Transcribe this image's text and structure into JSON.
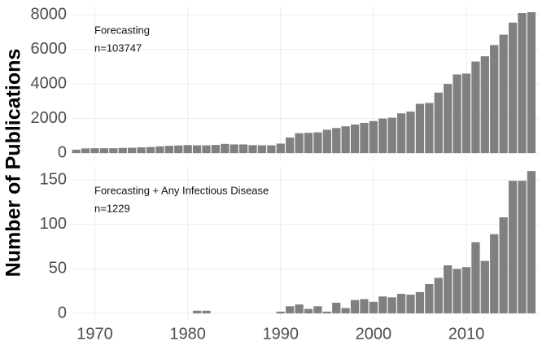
{
  "chart_data": [
    {
      "type": "bar",
      "ylabel": "Number of Publications",
      "color": "#808080",
      "grid": true,
      "annotations": [
        "Forecasting",
        "n=103747"
      ],
      "x": [
        1968,
        1969,
        1970,
        1971,
        1972,
        1973,
        1974,
        1975,
        1976,
        1977,
        1978,
        1979,
        1980,
        1981,
        1982,
        1983,
        1984,
        1985,
        1986,
        1987,
        1988,
        1989,
        1990,
        1991,
        1992,
        1993,
        1994,
        1995,
        1996,
        1997,
        1998,
        1999,
        2000,
        2001,
        2002,
        2003,
        2004,
        2005,
        2006,
        2007,
        2008,
        2009,
        2010,
        2011,
        2012,
        2013,
        2014,
        2015,
        2016,
        2017
      ],
      "values": [
        200,
        270,
        280,
        280,
        280,
        300,
        310,
        330,
        350,
        390,
        420,
        440,
        460,
        450,
        450,
        470,
        530,
        500,
        500,
        460,
        450,
        450,
        550,
        900,
        1150,
        1170,
        1200,
        1350,
        1450,
        1550,
        1650,
        1750,
        1850,
        2000,
        2050,
        2300,
        2400,
        2850,
        2900,
        3500,
        4000,
        4550,
        4600,
        5300,
        5600,
        6250,
        6850,
        7550,
        8100,
        8150
      ],
      "xlim": [
        1967.5,
        2017.8
      ],
      "xticks": [
        1970,
        1980,
        1990,
        2000,
        2010
      ],
      "ylim": [
        -420,
        8480
      ],
      "yticks": [
        0,
        2000,
        4000,
        6000,
        8000
      ]
    },
    {
      "type": "bar",
      "color": "#808080",
      "grid": true,
      "annotations": [
        "Forecasting + Any Infectious Disease",
        "n=1229"
      ],
      "x": [
        1968,
        1969,
        1970,
        1971,
        1972,
        1973,
        1974,
        1975,
        1976,
        1977,
        1978,
        1979,
        1980,
        1981,
        1982,
        1983,
        1984,
        1985,
        1986,
        1987,
        1988,
        1989,
        1990,
        1991,
        1992,
        1993,
        1994,
        1995,
        1996,
        1997,
        1998,
        1999,
        2000,
        2001,
        2002,
        2003,
        2004,
        2005,
        2006,
        2007,
        2008,
        2009,
        2010,
        2011,
        2012,
        2013,
        2014,
        2015,
        2016,
        2017
      ],
      "values": [
        0,
        0,
        0,
        0,
        0,
        0,
        0,
        0,
        0,
        0,
        0,
        0,
        0,
        3,
        3,
        0,
        0,
        0,
        0,
        0,
        0,
        0,
        2,
        8,
        10,
        5,
        8,
        2,
        12,
        6,
        15,
        16,
        13,
        19,
        18,
        22,
        21,
        24,
        33,
        40,
        54,
        50,
        52,
        80,
        59,
        89,
        108,
        149,
        149,
        160
      ],
      "xlim": [
        1967.5,
        2017.8
      ],
      "xticks": [
        1970,
        1980,
        1990,
        2000,
        2010
      ],
      "ylim": [
        -7.3,
        164.7
      ],
      "yticks": [
        0,
        50,
        100,
        150
      ]
    }
  ]
}
